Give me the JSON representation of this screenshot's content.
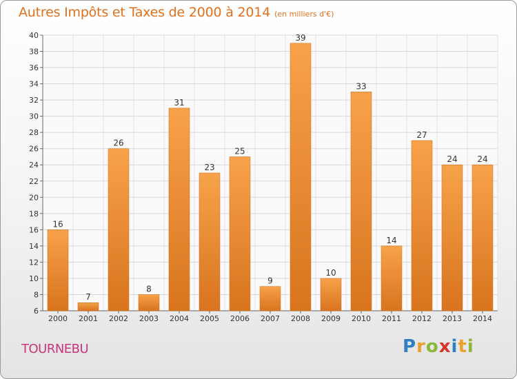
{
  "chart_data": {
    "type": "bar",
    "title": "Autres Impôts et Taxes de 2000 à 2014",
    "subtitle": "(en milliers d'€)",
    "categories": [
      "2000",
      "2001",
      "2002",
      "2003",
      "2004",
      "2005",
      "2006",
      "2007",
      "2008",
      "2009",
      "2010",
      "2011",
      "2012",
      "2013",
      "2014"
    ],
    "values": [
      16,
      7,
      26,
      8,
      31,
      23,
      25,
      9,
      39,
      10,
      33,
      14,
      27,
      24,
      24
    ],
    "ylim": [
      6,
      40
    ],
    "yticks": [
      "6",
      "8",
      "10",
      "12",
      "14",
      "16",
      "18",
      "20",
      "22",
      "24",
      "26",
      "28",
      "30",
      "32",
      "34",
      "36",
      "38",
      "40"
    ],
    "grid": true,
    "bar_color": "#f2922e"
  },
  "commune": "TOURNEBU",
  "logo": {
    "text": "Proxiti",
    "letters": [
      {
        "ch": "P",
        "color": "#2f7fc1"
      },
      {
        "ch": "r",
        "color": "#e8a12a"
      },
      {
        "ch": "o",
        "color": "#8bb83a"
      },
      {
        "ch": "x",
        "color": "#d8352a"
      },
      {
        "ch": "i",
        "color": "#2f7fc1"
      },
      {
        "ch": "t",
        "color": "#e8a12a"
      },
      {
        "ch": "i",
        "color": "#8bb83a"
      }
    ]
  }
}
